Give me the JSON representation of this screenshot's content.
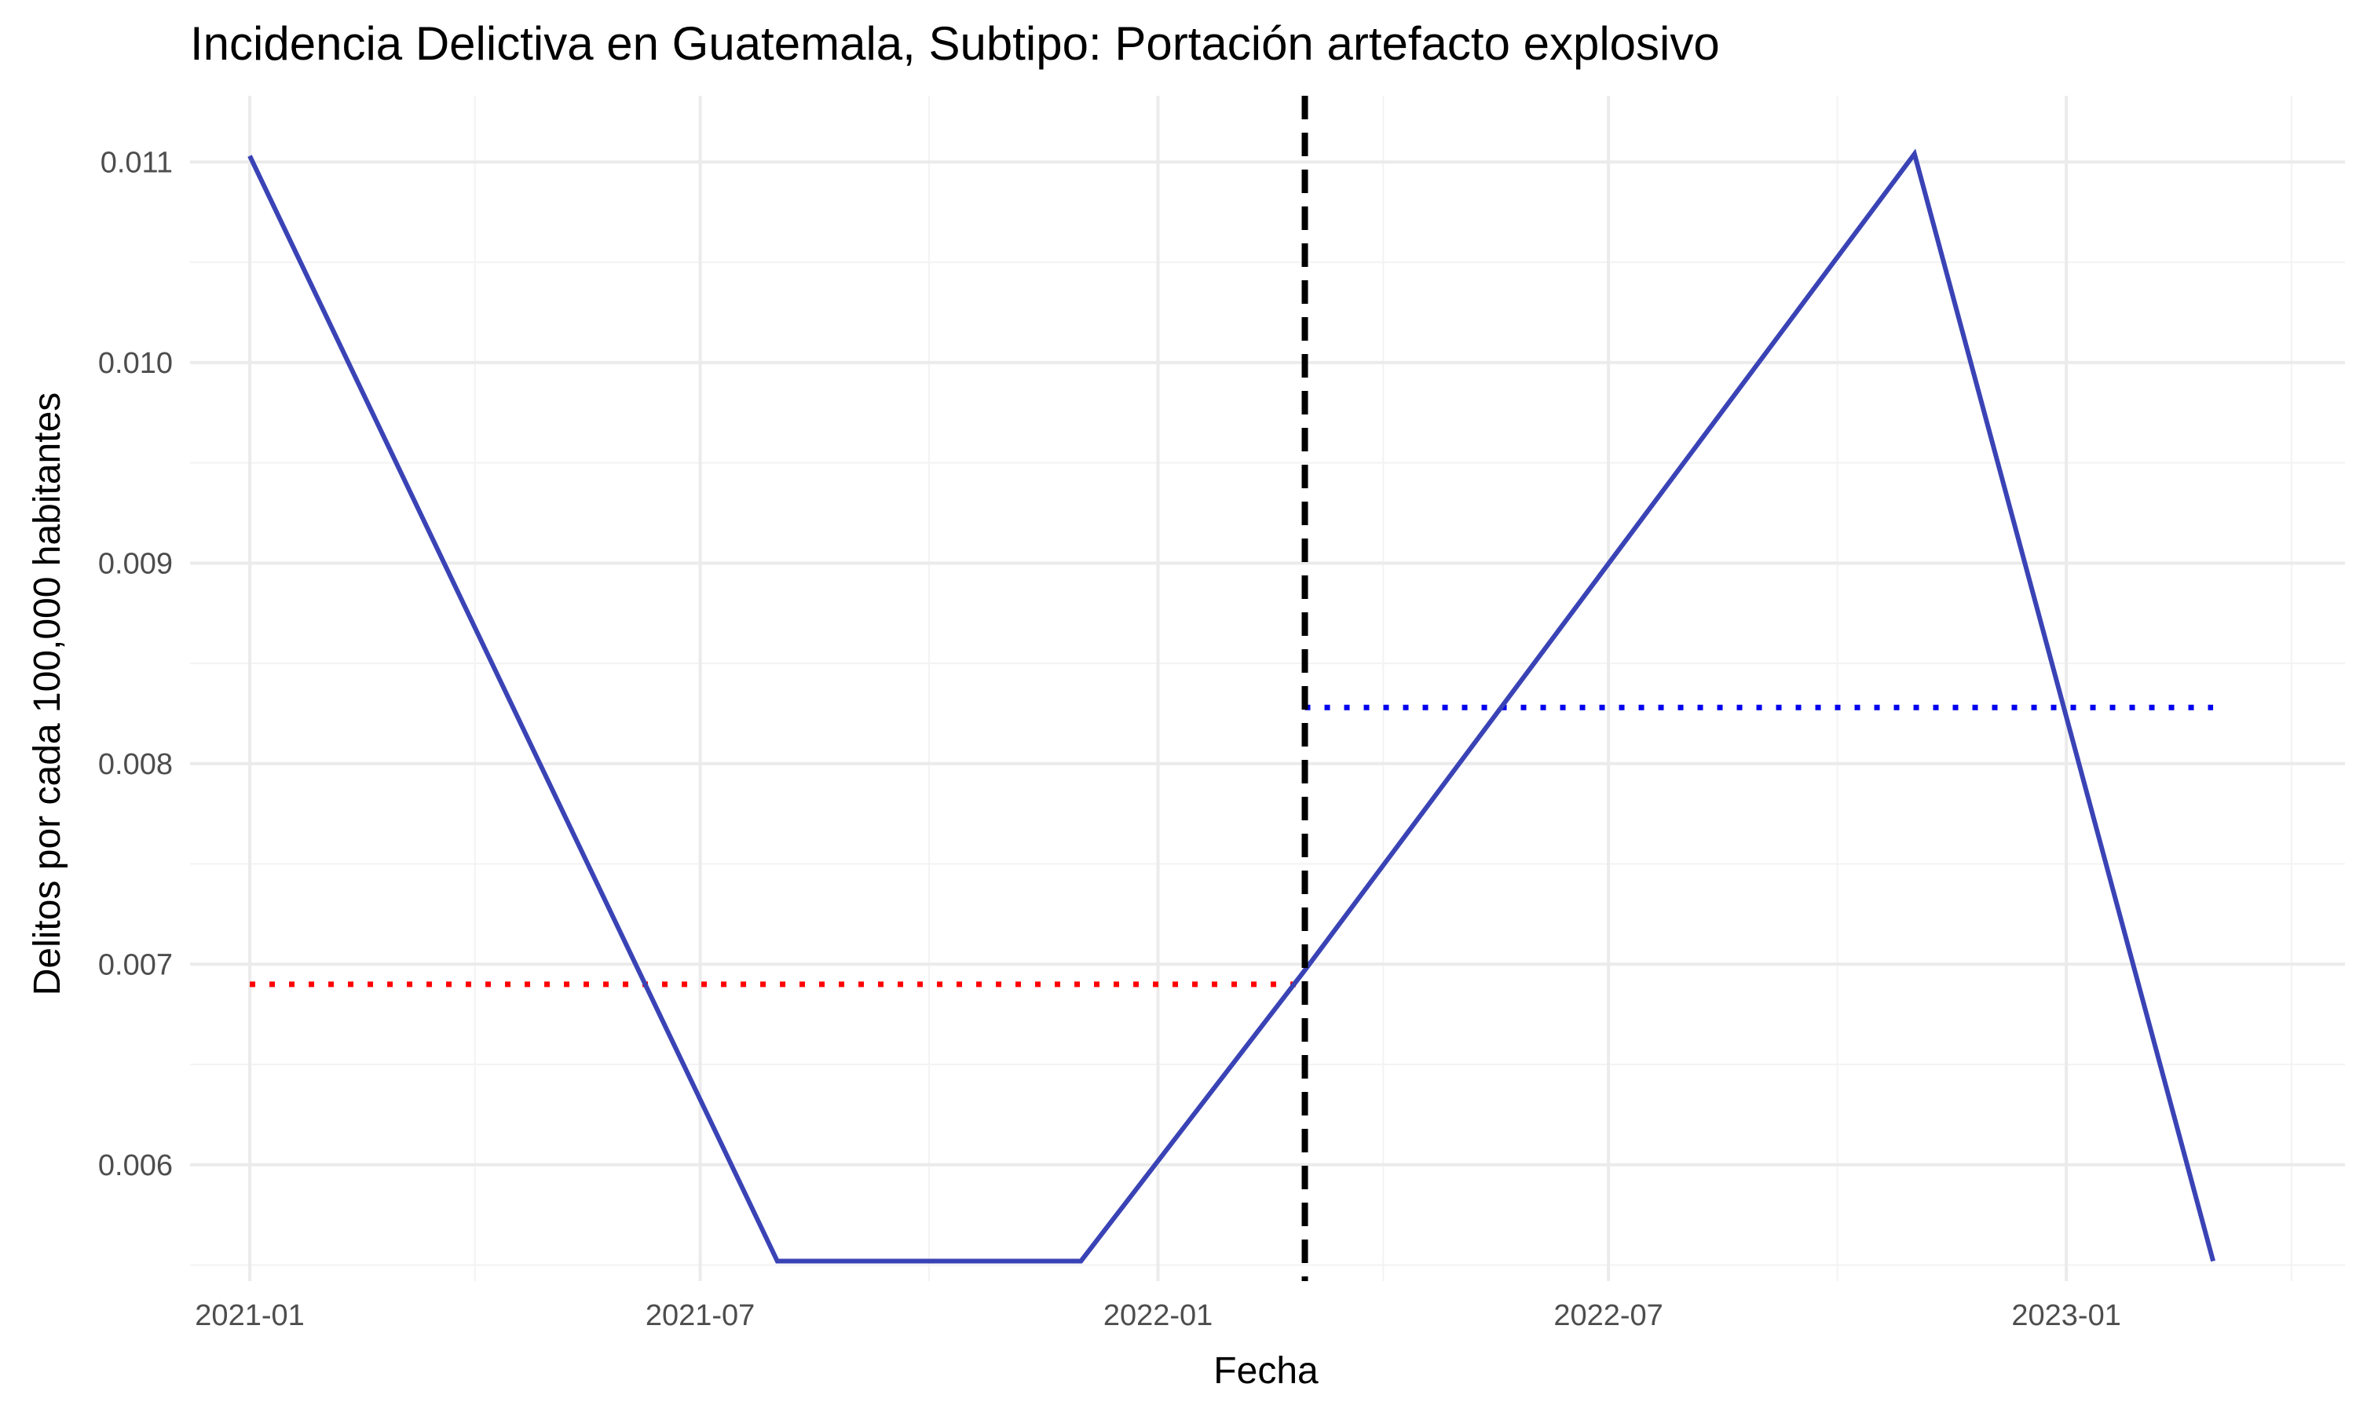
{
  "chart_data": {
    "type": "line",
    "title": "Incidencia Delictiva en Guatemala, Subtipo: Portación artefacto explosivo",
    "xlabel": "Fecha",
    "ylabel": "Delitos por cada 100,000 habitantes",
    "x_axis_type": "date",
    "xlim": [
      "2020-12-08",
      "2023-04-23"
    ],
    "ylim": [
      0.00542,
      0.01133
    ],
    "x_ticks": [
      {
        "value": "2021-01-01",
        "label": "2021-01"
      },
      {
        "value": "2021-07-01",
        "label": "2021-07"
      },
      {
        "value": "2022-01-01",
        "label": "2022-01"
      },
      {
        "value": "2022-07-01",
        "label": "2022-07"
      },
      {
        "value": "2023-01-01",
        "label": "2023-01"
      }
    ],
    "y_ticks": [
      {
        "value": 0.006,
        "label": "0.006"
      },
      {
        "value": 0.007,
        "label": "0.007"
      },
      {
        "value": 0.008,
        "label": "0.008"
      },
      {
        "value": 0.009,
        "label": "0.009"
      },
      {
        "value": 0.01,
        "label": "0.010"
      },
      {
        "value": 0.011,
        "label": "0.011"
      }
    ],
    "grid": true,
    "series": [
      {
        "color": "#3a43b5",
        "points": [
          {
            "x": "2021-01-01",
            "y": 0.01103
          },
          {
            "x": "2021-08-01",
            "y": 0.00552
          },
          {
            "x": "2021-12-01",
            "y": 0.00552
          },
          {
            "x": "2022-03-01",
            "y": 0.00697
          },
          {
            "x": "2022-11-01",
            "y": 0.01104
          },
          {
            "x": "2023-03-01",
            "y": 0.00552
          }
        ]
      }
    ],
    "vertical_line": {
      "x": "2022-03-01",
      "style": "dashed",
      "color": "#000000"
    },
    "mean_lines": [
      {
        "x_start": "2021-01-01",
        "x_end": "2022-03-01",
        "y": 0.0069,
        "style": "dotted",
        "color": "#ff0000"
      },
      {
        "x_start": "2022-03-01",
        "x_end": "2023-03-01",
        "y": 0.00828,
        "style": "dotted",
        "color": "#0000ee"
      }
    ]
  }
}
